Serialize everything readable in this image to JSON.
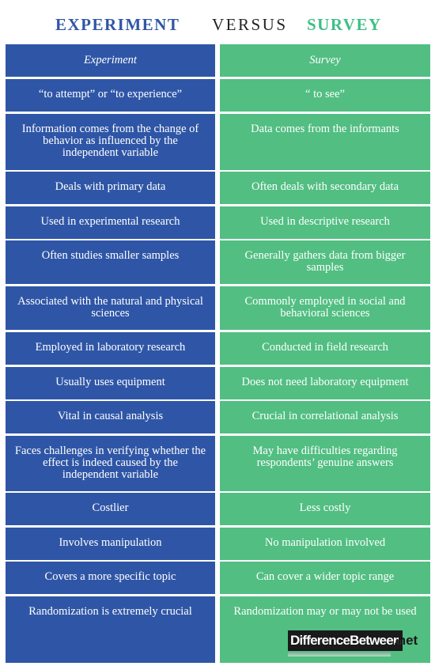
{
  "header": {
    "left": "EXPERIMENT",
    "middle": "VERSUS",
    "right": "SURVEY"
  },
  "table": {
    "col_left_header": "Experiment",
    "col_right_header": "Survey",
    "rows": [
      {
        "left": "“to attempt” or “to experience”",
        "right": "“ to see”"
      },
      {
        "left": "Information comes from the change of behavior as influenced by the independent variable",
        "right": "Data comes from the informants"
      },
      {
        "left": "Deals with primary data",
        "right": "Often deals with secondary data"
      },
      {
        "left": "Used in experimental research",
        "right": "Used in descriptive research"
      },
      {
        "left": "Often studies smaller samples",
        "right": "Generally gathers data from bigger samples"
      },
      {
        "left": "Associated with the natural and physical sciences",
        "right": "Commonly employed in social and behavioral sciences"
      },
      {
        "left": "Employed in laboratory research",
        "right": "Conducted in field research"
      },
      {
        "left": "Usually uses equipment",
        "right": "Does not need laboratory equipment"
      },
      {
        "left": "Vital in causal analysis",
        "right": "Crucial in correlational analysis"
      },
      {
        "left": "Faces challenges in verifying whether the effect is indeed caused by the independent variable",
        "right": "May have difficulties regarding respondents’ genuine answers"
      },
      {
        "left": "Costlier",
        "right": "Less costly"
      },
      {
        "left": "Involves manipulation",
        "right": "No manipulation involved"
      },
      {
        "left": "Covers a more specific topic",
        "right": "Can cover a wider topic range"
      },
      {
        "left": "Randomization is extremely crucial",
        "right": "Randomization may or may not be used"
      }
    ]
  },
  "logo": {
    "text": "DifferenceBetween",
    "suffix": ".net"
  },
  "colors": {
    "experiment_blue": "#2f56a6",
    "survey_green": "#52be82",
    "survey_title_green": "#3fbf86"
  }
}
